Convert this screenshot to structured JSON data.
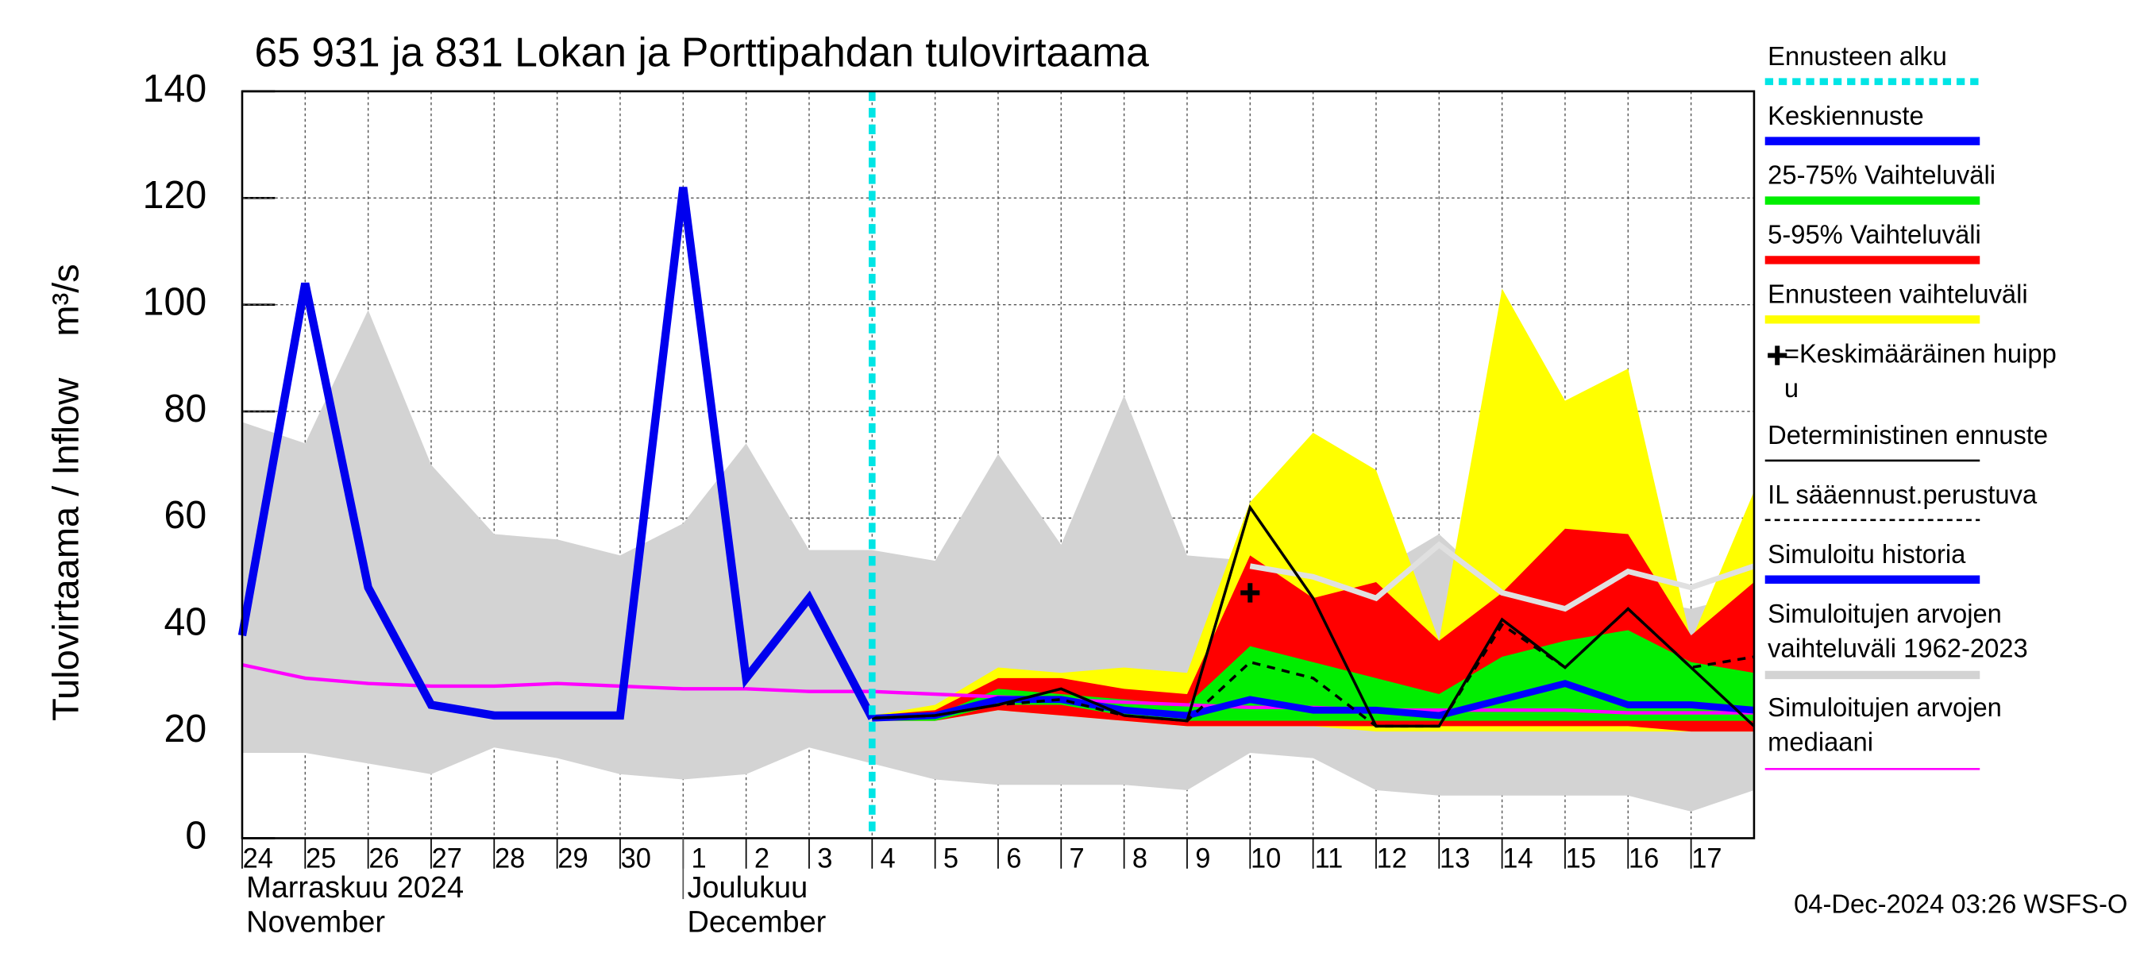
{
  "chart_data": {
    "type": "line",
    "title": "65 931 ja 831 Lokan ja Porttipahdan tulovirtaama",
    "y_label": "Tulovirtaama / Inflow    m³/s",
    "categories": [
      "24",
      "25",
      "26",
      "27",
      "28",
      "29",
      "30",
      "1",
      "2",
      "3",
      "4",
      "5",
      "6",
      "7",
      "8",
      "9",
      "10",
      "11",
      "12",
      "13",
      "14",
      "15",
      "16",
      "17",
      null
    ],
    "month_labels": [
      [
        "Marraskuu 2024",
        "November"
      ],
      [
        "Joulukuu",
        "December"
      ]
    ],
    "month_start_indices": [
      0,
      7
    ],
    "ylim": [
      0,
      140
    ],
    "yticks": [
      0,
      20,
      40,
      60,
      80,
      100,
      120,
      140
    ],
    "grid": true,
    "forecast_start_index": 10,
    "forecast_start_color": "#00e5e5",
    "bands": [
      {
        "color": "#d3d3d3",
        "upper": [
          78,
          74,
          99,
          70,
          57,
          56,
          53,
          59,
          74,
          54,
          54,
          52,
          72,
          55,
          83,
          53,
          52,
          52,
          50,
          57,
          46,
          45,
          45,
          43,
          46
        ],
        "lower": [
          16,
          16,
          14,
          12,
          17,
          15,
          12,
          11,
          12,
          17,
          14,
          11,
          10,
          10,
          10,
          9,
          16,
          15,
          9,
          8,
          8,
          8,
          8,
          5,
          9
        ]
      },
      {
        "color": "#ffff00",
        "upper": [
          null,
          null,
          null,
          null,
          null,
          null,
          null,
          null,
          null,
          null,
          23,
          25,
          32,
          31,
          32,
          31,
          63,
          76,
          69,
          37,
          103,
          82,
          88,
          37,
          65
        ],
        "lower": [
          null,
          null,
          null,
          null,
          null,
          null,
          null,
          null,
          null,
          null,
          22,
          22,
          24,
          23,
          22,
          21,
          21,
          21,
          20,
          20,
          20,
          20,
          20,
          20,
          20
        ]
      },
      {
        "color": "#ff0000",
        "upper": [
          null,
          null,
          null,
          null,
          null,
          null,
          null,
          null,
          null,
          null,
          23,
          24,
          30,
          30,
          28,
          27,
          53,
          45,
          48,
          37,
          46,
          58,
          57,
          38,
          48
        ],
        "lower": [
          null,
          null,
          null,
          null,
          null,
          null,
          null,
          null,
          null,
          null,
          22,
          22,
          24,
          23,
          22,
          21,
          21,
          21,
          21,
          21,
          21,
          21,
          21,
          20,
          20
        ]
      },
      {
        "color": "#00ee00",
        "upper": [
          null,
          null,
          null,
          null,
          null,
          null,
          null,
          null,
          null,
          null,
          23,
          23,
          28,
          27,
          26,
          25,
          36,
          33,
          30,
          27,
          34,
          37,
          39,
          33,
          31
        ],
        "lower": [
          null,
          null,
          null,
          null,
          null,
          null,
          null,
          null,
          null,
          null,
          22,
          22,
          25,
          25,
          23,
          22,
          22,
          22,
          22,
          22,
          22,
          22,
          22,
          22,
          22
        ]
      }
    ],
    "series": [
      {
        "color": "#e0e0e0",
        "width": 4,
        "dash": "none",
        "values": [
          null,
          null,
          null,
          null,
          null,
          null,
          null,
          null,
          null,
          null,
          null,
          null,
          null,
          null,
          null,
          null,
          51,
          49,
          45,
          55,
          46,
          43,
          50,
          47,
          51
        ]
      },
      {
        "color": "#ff00ff",
        "width": 2.5,
        "dash": "none",
        "values": [
          32.5,
          30,
          29,
          28.5,
          28.5,
          29,
          28.5,
          28,
          28,
          27.5,
          27.5,
          27,
          26.5,
          26,
          25.5,
          25,
          24.5,
          24.5,
          24,
          24,
          24,
          24,
          23.5,
          23.5,
          23.5
        ]
      },
      {
        "color": "#0000ff",
        "width": 5,
        "dash": "none",
        "values": [
          null,
          null,
          null,
          null,
          null,
          null,
          null,
          null,
          null,
          null,
          22.5,
          23,
          26,
          26,
          24,
          23,
          26,
          24,
          24,
          23,
          26,
          29,
          25,
          25,
          24
        ]
      },
      {
        "color": "#000000",
        "width": 2,
        "dash": "6 5",
        "values": [
          null,
          null,
          null,
          null,
          null,
          null,
          null,
          null,
          null,
          null,
          22.5,
          23,
          25,
          26,
          23,
          22,
          33,
          30,
          21,
          21,
          40,
          32,
          43,
          32,
          34
        ]
      },
      {
        "color": "#000000",
        "width": 2,
        "dash": "none",
        "values": [
          null,
          null,
          null,
          null,
          null,
          null,
          null,
          null,
          null,
          null,
          22.5,
          23,
          25,
          28,
          23,
          22,
          62,
          45,
          21,
          21,
          41,
          32,
          43,
          32,
          21
        ]
      },
      {
        "color": "#0000ee",
        "width": 6,
        "dash": "none",
        "values": [
          38,
          104,
          47,
          25,
          23,
          23,
          23,
          122,
          30,
          45,
          22.5,
          null,
          null,
          null,
          null,
          null,
          null,
          null,
          null,
          null,
          null,
          null,
          null,
          null,
          null
        ]
      }
    ],
    "peak": {
      "index": 16,
      "value": 46
    },
    "legend": [
      {
        "lines": [
          "Ennusteen alku"
        ],
        "color": "#00e5e5",
        "style": "dotted"
      },
      {
        "lines": [
          "Keskiennuste"
        ],
        "color": "#0000ff",
        "style": "thick"
      },
      {
        "lines": [
          "25-75% Vaihteluväli"
        ],
        "color": "#00ee00",
        "style": "thick"
      },
      {
        "lines": [
          "5-95% Vaihteluväli"
        ],
        "color": "#ff0000",
        "style": "thick"
      },
      {
        "lines": [
          "Ennusteen vaihteluväli"
        ],
        "color": "#ffff00",
        "style": "thick"
      },
      {
        "lines": [
          "=Keskimääräinen huipp",
          "u"
        ],
        "color": "#000000",
        "style": "marker"
      },
      {
        "lines": [
          "Deterministinen ennuste"
        ],
        "color": "#000000",
        "style": "thin"
      },
      {
        "lines": [
          "IL sääennust.perustuva"
        ],
        "color": "#000000",
        "style": "dashed"
      },
      {
        "lines": [
          "Simuloitu historia"
        ],
        "color": "#0000ff",
        "style": "thick"
      },
      {
        "lines": [
          "Simuloitujen arvojen",
          "vaihteluväli 1962-2023"
        ],
        "color": "#d3d3d3",
        "style": "thick"
      },
      {
        "lines": [
          "Simuloitujen arvojen",
          "mediaani"
        ],
        "color": "#ff00ff",
        "style": "thin"
      }
    ],
    "footer": "04-Dec-2024 03:26 WSFS-O"
  }
}
